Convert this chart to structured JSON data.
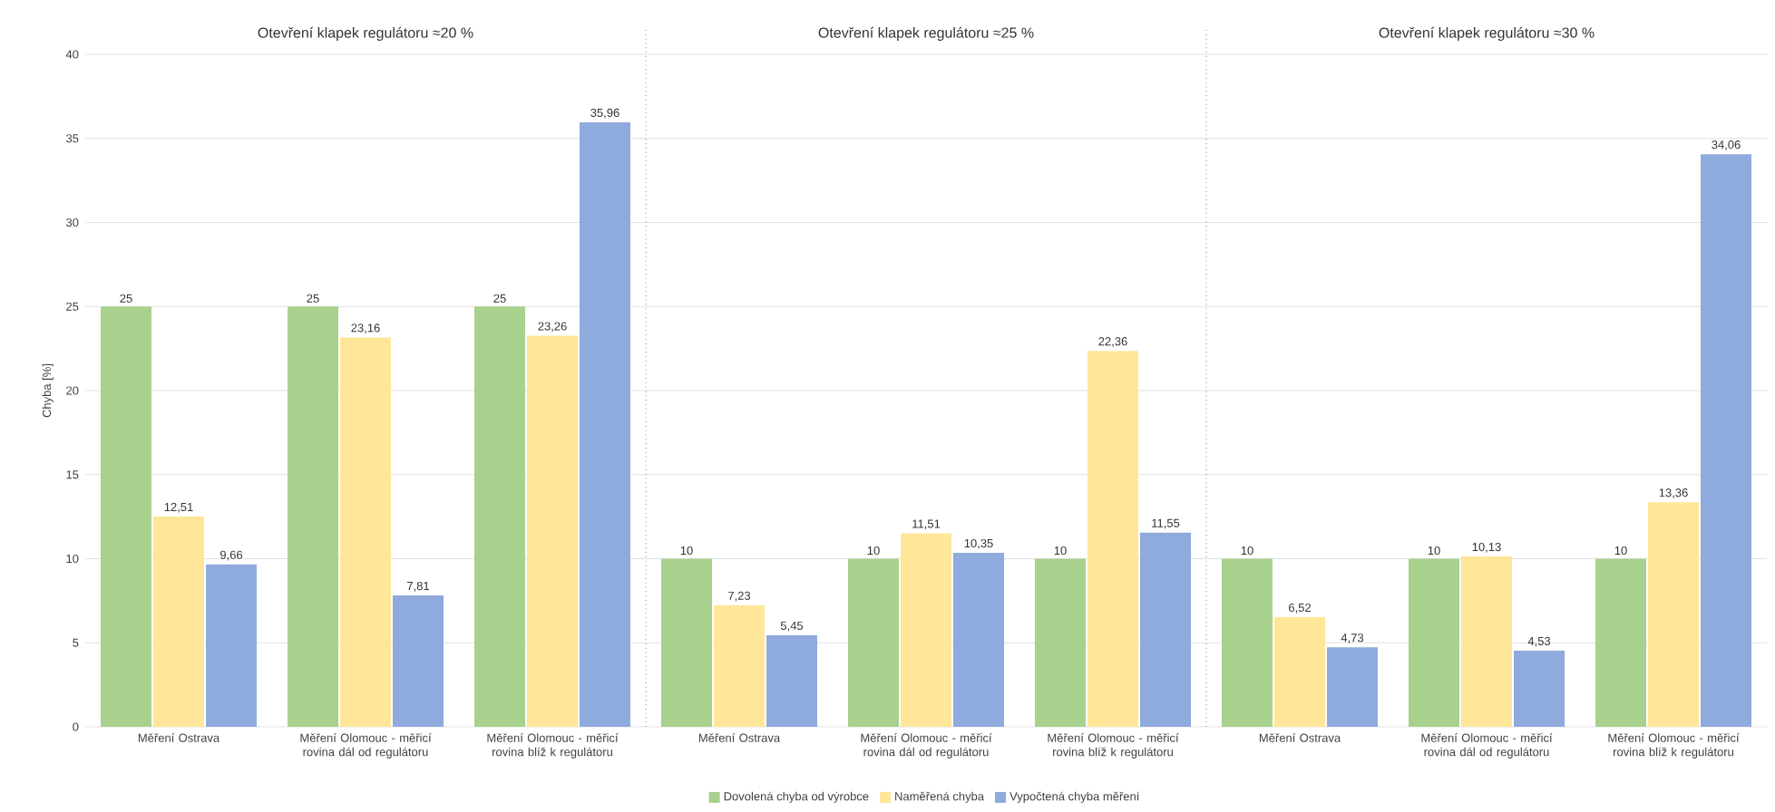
{
  "chart_data": {
    "type": "bar",
    "ylabel": "Chyba [%]",
    "categories": [
      "Měření Ostrava",
      "Měření Olomouc - měřicí rovina dál od regulátoru",
      "Měření Olomouc - měřicí rovina blíž k regulátoru",
      "Měření Ostrava",
      "Měření Olomouc - měřicí rovina dál od regulátoru",
      "Měření Olomouc - měřicí rovina blíž k regulátoru",
      "Měření Ostrava",
      "Měření Olomouc - měřicí rovina dál od regulátoru",
      "Měření Olomouc - měřicí rovina blíž k regulátoru"
    ],
    "series": [
      {
        "name": "Dovolená chyba od výrobce",
        "color": "#a9d18e",
        "values": [
          25,
          25,
          25,
          10,
          10,
          10,
          10,
          10,
          10
        ],
        "value_labels": [
          "25",
          "25",
          "25",
          "10",
          "10",
          "10",
          "10",
          "10",
          "10"
        ]
      },
      {
        "name": "Naměřená chyba",
        "color": "#ffe699",
        "values": [
          12.51,
          23.16,
          23.26,
          7.23,
          11.51,
          22.36,
          6.52,
          10.13,
          13.36
        ],
        "value_labels": [
          "12,51",
          "23,16",
          "23,26",
          "7,23",
          "11,51",
          "22,36",
          "6,52",
          "10,13",
          "13,36"
        ]
      },
      {
        "name": "Vypočtená chyba měření",
        "color": "#8faadc",
        "values": [
          9.66,
          7.81,
          35.96,
          5.45,
          10.35,
          11.55,
          4.73,
          4.53,
          34.06
        ],
        "value_labels": [
          "9,66",
          "7,81",
          "35,96",
          "5,45",
          "10,35",
          "11,55",
          "4,73",
          "4,53",
          "34,06"
        ]
      }
    ],
    "annotations": [
      "Otevření klapek regulátoru ≈20 %",
      "Otevření klapek regulátoru ≈25 %",
      "Otevření klapek regulátoru ≈30 %"
    ],
    "ylim": [
      0,
      40
    ],
    "yticks": [
      0,
      5,
      10,
      15,
      20,
      25,
      30,
      35,
      40
    ],
    "grid": "y",
    "legend": "bottom"
  }
}
